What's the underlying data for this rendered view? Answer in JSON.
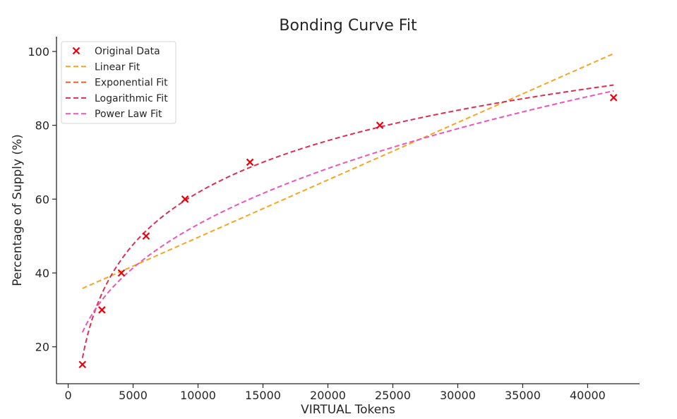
{
  "chart_data": {
    "type": "scatter",
    "title": "Bonding Curve Fit",
    "xlabel": "VIRTUAL Tokens",
    "ylabel": "Percentage of Supply (%)",
    "xlim": [
      -900,
      44000
    ],
    "ylim": [
      10,
      104
    ],
    "xticks": [
      0,
      5000,
      10000,
      15000,
      20000,
      25000,
      30000,
      35000,
      40000
    ],
    "yticks": [
      20,
      40,
      60,
      80,
      100
    ],
    "legend_position": "top-left",
    "grid": false,
    "points": {
      "name": "Original Data",
      "color": "#e8000b",
      "marker": "x",
      "x": [
        1100,
        2600,
        4100,
        6000,
        9000,
        14000,
        24000,
        42000
      ],
      "y": [
        15.2,
        30,
        40,
        50,
        60,
        70,
        80,
        87.5
      ]
    },
    "fits": [
      {
        "name": "Linear Fit",
        "color": "#f5a623",
        "kind": "linear",
        "x_range": [
          1100,
          42000
        ],
        "params": {
          "a": 0.001555,
          "b": 34.1
        }
      },
      {
        "name": "Exponential Fit",
        "color": "#e0612a",
        "kind": "hidden",
        "x_range": [
          1100,
          42000
        ],
        "params": {}
      },
      {
        "name": "Logarithmic Fit",
        "color": "#dc3050",
        "kind": "log",
        "x_range": [
          1100,
          42000
        ],
        "params": {
          "a": 20.3,
          "b": -125.2
        }
      },
      {
        "name": "Power Law Fit",
        "color": "#ef55b8",
        "kind": "power",
        "x_range": [
          1100,
          42000
        ],
        "params": {
          "a": 1.9,
          "b": 0.3617
        }
      }
    ]
  }
}
